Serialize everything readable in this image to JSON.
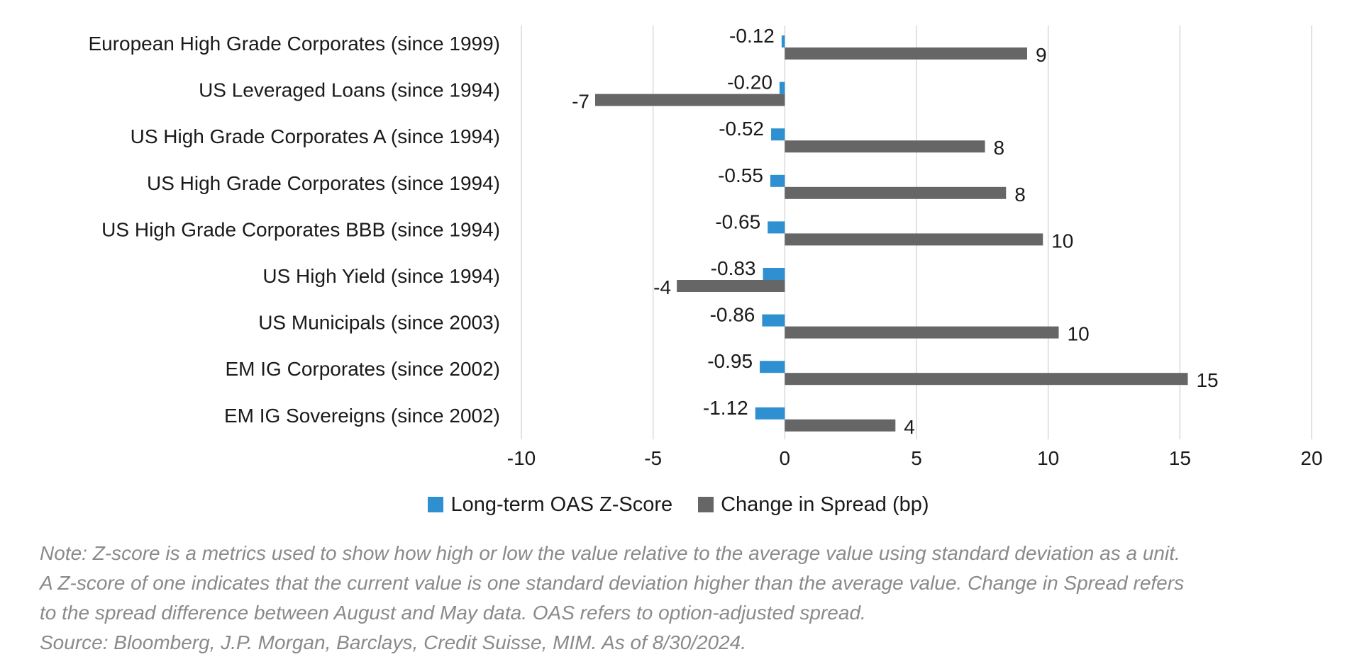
{
  "chart_data": {
    "type": "bar",
    "orientation": "horizontal",
    "categories": [
      "European High Grade Corporates (since 1999)",
      "US Leveraged Loans (since 1994)",
      "US High Grade Corporates A (since 1994)",
      "US High Grade Corporates (since 1994)",
      "US High Grade Corporates BBB (since 1994)",
      "US High Yield (since 1994)",
      "US Municipals (since 2003)",
      "EM IG Corporates (since 2002)",
      "EM IG Sovereigns (since 2002)"
    ],
    "series": [
      {
        "name": "Long-term OAS Z-Score",
        "color": "#2E90D1",
        "values": [
          -0.12,
          -0.2,
          -0.52,
          -0.55,
          -0.65,
          -0.83,
          -0.86,
          -0.95,
          -1.12
        ],
        "labels": [
          "-0.12",
          "-0.20",
          "-0.52",
          "-0.55",
          "-0.65",
          "-0.83",
          "-0.86",
          "-0.95",
          "-1.12"
        ]
      },
      {
        "name": "Change in Spread (bp)",
        "color": "#666666",
        "values": [
          9.2,
          -7.2,
          7.6,
          8.4,
          9.8,
          -4.1,
          10.4,
          15.3,
          4.2
        ],
        "labels": [
          "9",
          "-7",
          "8",
          "8",
          "10",
          "-4",
          "10",
          "15",
          "4"
        ]
      }
    ],
    "xlim": [
      -10,
      20
    ],
    "xticks": [
      "-10",
      "-5",
      "0",
      "5",
      "10",
      "15",
      "20"
    ],
    "grid": "vertical",
    "legend_position": "bottom"
  },
  "notes": [
    "Note: Z-score is a metrics used to show how high or low the value relative to the average value using standard deviation as a unit.",
    "A Z-score of one indicates that the current value is one standard deviation higher than the average value. Change in Spread refers",
    "to the spread difference between August and May data. OAS refers to option-adjusted spread.",
    "Source: Bloomberg, J.P. Morgan, Barclays, Credit Suisse, MIM. As of 8/30/2024."
  ]
}
